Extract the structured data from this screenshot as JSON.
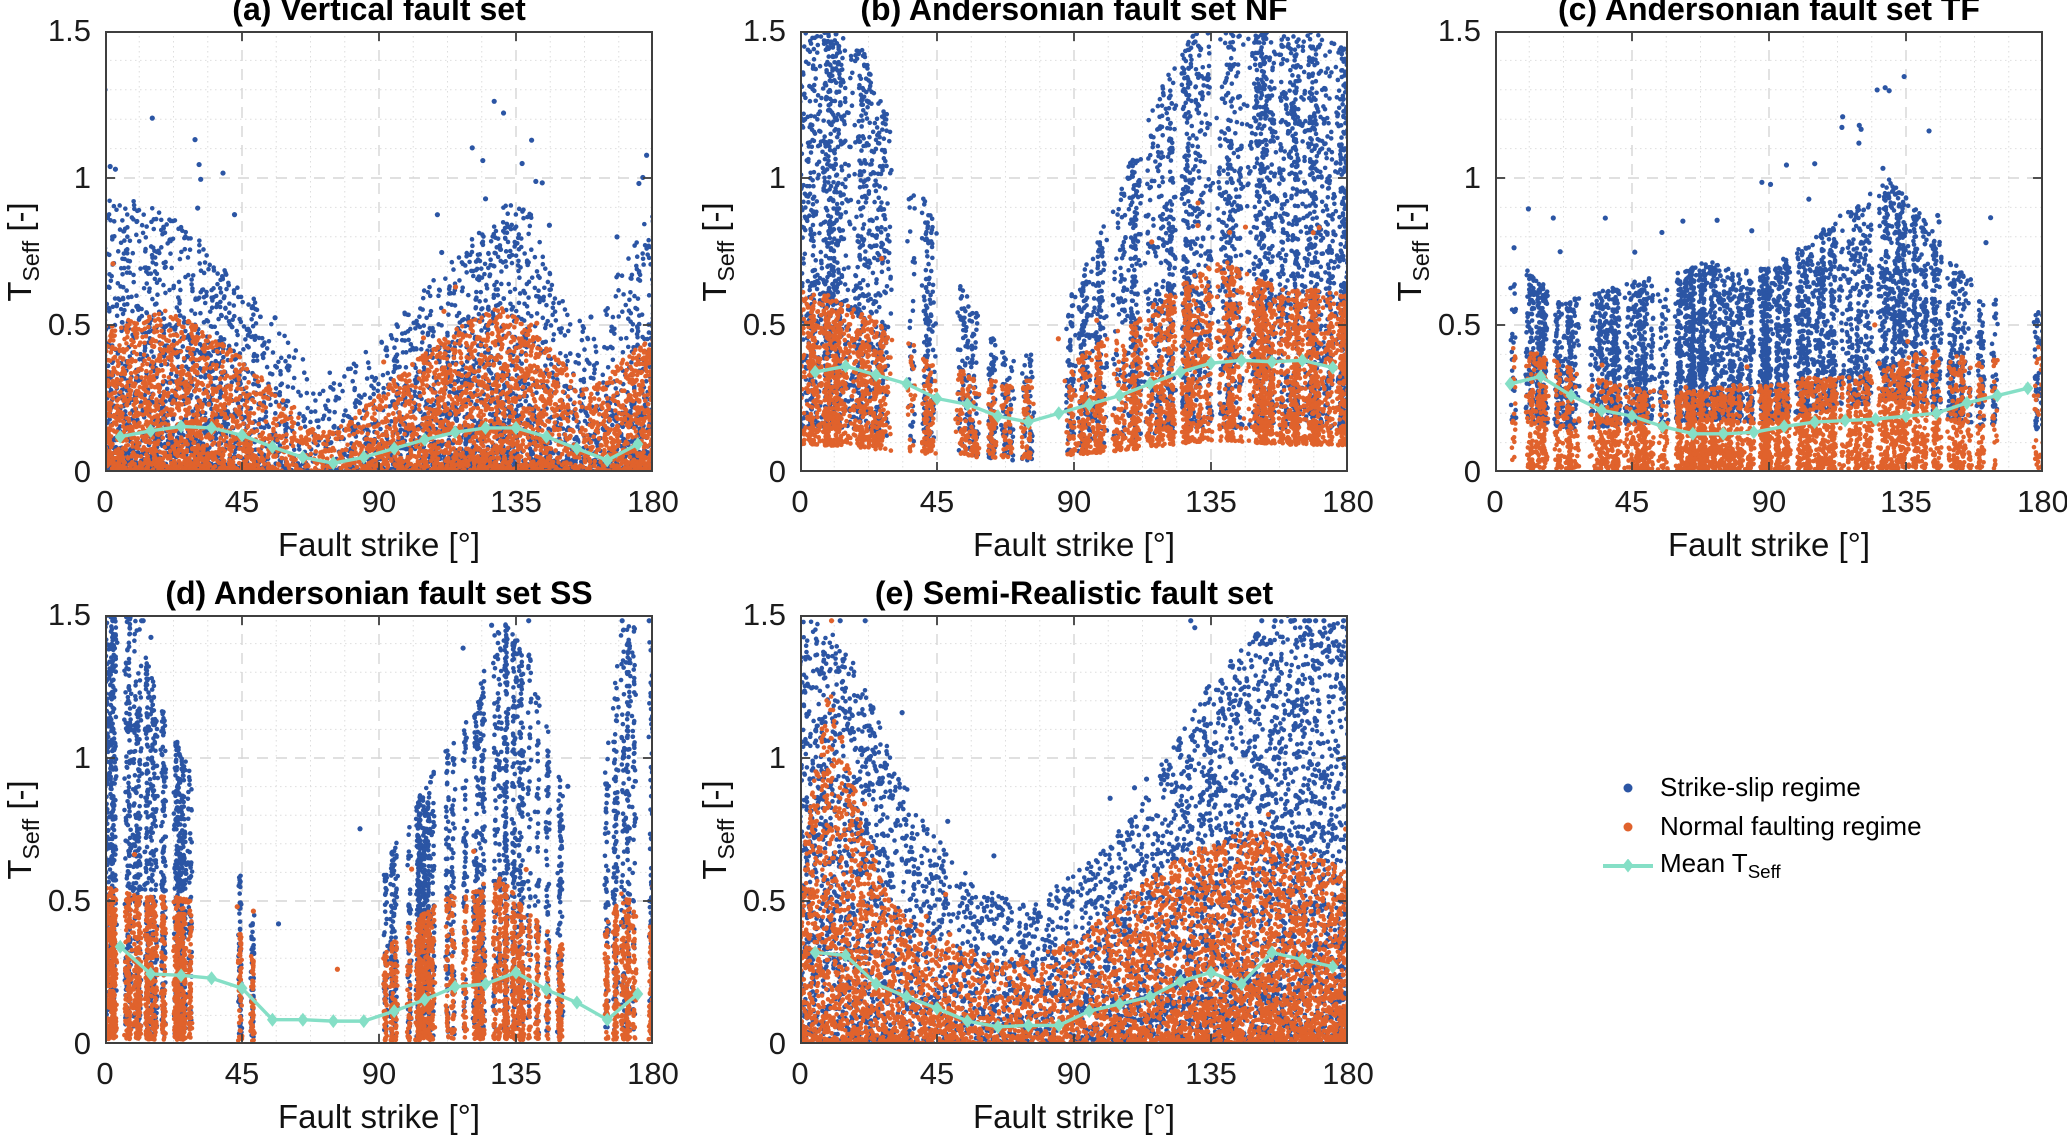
{
  "colors": {
    "strike_slip": "#2b55a4",
    "normal_faulting": "#e0622c",
    "mean_line": "#85dfc6",
    "grid_minor": "#dedede",
    "grid_major": "#d6d6d6",
    "axis_box": "#3f3f3f",
    "background": "#ffffff"
  },
  "axes": {
    "xlabel": "Fault strike [°]",
    "ylabel_main": "T",
    "ylabel_sub": "Seff",
    "ylabel_unit": " [-]",
    "xlim": [
      0,
      180
    ],
    "ylim": [
      0,
      1.5
    ],
    "xticks": [
      0,
      45,
      90,
      135,
      180
    ],
    "xtick_labels": [
      "0",
      "45",
      "90",
      "135",
      "180"
    ],
    "yticks": [
      0,
      0.5,
      1,
      1.5
    ],
    "ytick_labels": [
      "0",
      "0.5",
      "1",
      "1.5"
    ],
    "grid": "on"
  },
  "legend": {
    "position": "bottom-right",
    "items": [
      {
        "label": "Strike-slip regime",
        "sub": "",
        "marker": "dot",
        "color": "#2b55a4"
      },
      {
        "label": "Normal faulting regime",
        "sub": "",
        "marker": "dot",
        "color": "#e0622c"
      },
      {
        "label": "Mean T",
        "sub": "Seff",
        "marker": "line-diamond",
        "color": "#85dfc6"
      }
    ]
  },
  "chart_data": [
    {
      "id": "a",
      "title": "(a) Vertical fault set",
      "type": "scatter",
      "style": "smooth",
      "cols": 0,
      "jitter": 0,
      "seed": 11,
      "env_x": [
        0,
        10,
        20,
        30,
        40,
        50,
        60,
        70,
        80,
        90,
        100,
        110,
        120,
        130,
        140,
        150,
        160,
        170,
        180
      ],
      "blue_hi": [
        0.95,
        0.92,
        0.88,
        0.8,
        0.7,
        0.58,
        0.45,
        0.33,
        0.36,
        0.45,
        0.56,
        0.68,
        0.8,
        0.93,
        0.88,
        0.6,
        0.46,
        0.72,
        0.92
      ],
      "orange_hi": [
        0.5,
        0.53,
        0.55,
        0.5,
        0.43,
        0.34,
        0.25,
        0.13,
        0.18,
        0.27,
        0.36,
        0.45,
        0.52,
        0.57,
        0.5,
        0.38,
        0.28,
        0.38,
        0.47
      ],
      "wx": [
        1,
        1,
        1,
        1,
        0.9,
        0.8,
        0.55,
        0.45,
        0.55,
        0.8,
        0.95,
        1,
        1,
        1,
        0.9,
        0.7,
        0.6,
        0.9,
        1
      ],
      "p_blue": 2.2,
      "p_orange": 1.5,
      "lo_blue": 0,
      "lo_orange": 0,
      "n_blue": 4200,
      "n_orange": 4200,
      "out_blue": 28,
      "out_orange": 6,
      "mean_x": [
        5,
        15,
        25,
        35,
        45,
        55,
        65,
        75,
        85,
        95,
        105,
        115,
        125,
        135,
        145,
        155,
        165,
        175
      ],
      "mean_y": [
        0.12,
        0.14,
        0.155,
        0.15,
        0.125,
        0.085,
        0.05,
        0.03,
        0.05,
        0.08,
        0.11,
        0.135,
        0.15,
        0.15,
        0.12,
        0.08,
        0.04,
        0.095
      ]
    },
    {
      "id": "b",
      "title": "(b) Andersonian fault set NF",
      "type": "scatter",
      "style": "streaky",
      "cols": 150,
      "jitter": 1.0,
      "seed": 22,
      "env_x": [
        0,
        10,
        20,
        30,
        40,
        50,
        60,
        70,
        80,
        90,
        100,
        110,
        120,
        130,
        140,
        150,
        160,
        170,
        180
      ],
      "blue_hi": [
        1.5,
        1.5,
        1.45,
        1.2,
        0.95,
        0.7,
        0.5,
        0.38,
        0.42,
        0.62,
        0.85,
        1.1,
        1.35,
        1.5,
        1.5,
        1.5,
        1.5,
        1.5,
        1.45
      ],
      "orange_hi": [
        0.62,
        0.6,
        0.55,
        0.48,
        0.42,
        0.36,
        0.32,
        0.3,
        0.33,
        0.38,
        0.45,
        0.52,
        0.6,
        0.68,
        0.72,
        0.66,
        0.62,
        0.62,
        0.6
      ],
      "wx": [
        1,
        1,
        0.95,
        0.85,
        0.7,
        0.55,
        0.5,
        0.45,
        0.5,
        0.6,
        0.75,
        0.9,
        1,
        1,
        1,
        1,
        1,
        1,
        1
      ],
      "p_blue": 1.15,
      "p_orange": 1.3,
      "lo_blue": 0.1,
      "lo_orange": 0.15,
      "n_blue": 5000,
      "n_orange": 4200,
      "out_blue": 0,
      "out_orange": 10,
      "mean_x": [
        5,
        15,
        25,
        35,
        45,
        55,
        65,
        75,
        85,
        95,
        105,
        115,
        125,
        135,
        145,
        155,
        165,
        175
      ],
      "mean_y": [
        0.34,
        0.36,
        0.33,
        0.3,
        0.25,
        0.23,
        0.19,
        0.17,
        0.2,
        0.23,
        0.26,
        0.3,
        0.34,
        0.37,
        0.38,
        0.375,
        0.38,
        0.355
      ]
    },
    {
      "id": "c",
      "title": "(c) Andersonian fault set TF",
      "type": "scatter",
      "style": "streaky",
      "cols": 160,
      "jitter": 0.7,
      "seed": 33,
      "env_x": [
        0,
        10,
        20,
        30,
        40,
        50,
        60,
        70,
        80,
        90,
        100,
        110,
        120,
        130,
        140,
        150,
        160,
        170,
        180
      ],
      "blue_hi": [
        0.62,
        0.72,
        0.58,
        0.6,
        0.63,
        0.66,
        0.68,
        0.72,
        0.68,
        0.7,
        0.76,
        0.85,
        0.92,
        1.0,
        0.88,
        0.72,
        0.62,
        0.56,
        0.55
      ],
      "orange_hi": [
        0.46,
        0.42,
        0.38,
        0.33,
        0.3,
        0.28,
        0.27,
        0.28,
        0.3,
        0.3,
        0.32,
        0.32,
        0.33,
        0.36,
        0.42,
        0.4,
        0.38,
        0.42,
        0.46
      ],
      "wx": [
        0.25,
        0.4,
        0.8,
        1,
        1,
        1,
        1,
        1,
        1,
        1,
        1,
        1,
        1,
        1,
        0.9,
        0.6,
        0.45,
        0.4,
        0.45
      ],
      "p_blue": 1.3,
      "p_orange": 1.3,
      "lo_blue": 0.25,
      "lo_orange": 0.03,
      "n_blue": 5200,
      "n_orange": 3800,
      "out_blue": 30,
      "out_orange": 6,
      "mean_x": [
        5,
        15,
        25,
        35,
        45,
        55,
        65,
        75,
        85,
        95,
        105,
        115,
        125,
        135,
        145,
        155,
        165,
        175
      ],
      "mean_y": [
        0.3,
        0.325,
        0.26,
        0.21,
        0.19,
        0.155,
        0.13,
        0.13,
        0.135,
        0.155,
        0.17,
        0.175,
        0.18,
        0.19,
        0.2,
        0.235,
        0.26,
        0.285
      ]
    },
    {
      "id": "d",
      "title": "(d) Andersonian fault set SS",
      "type": "scatter",
      "style": "streaky",
      "cols": 75,
      "jitter": 0.5,
      "seed": 44,
      "env_x": [
        0,
        10,
        20,
        30,
        40,
        50,
        60,
        70,
        80,
        90,
        100,
        110,
        120,
        130,
        140,
        150,
        160,
        170,
        180
      ],
      "blue_hi": [
        1.5,
        1.5,
        1.15,
        0.9,
        0.72,
        0.45,
        0.28,
        0.32,
        0.5,
        0.58,
        0.8,
        1.0,
        1.15,
        1.5,
        1.35,
        0.9,
        0.55,
        1.5,
        1.4
      ],
      "orange_hi": [
        0.55,
        0.52,
        0.52,
        0.5,
        0.47,
        0.3,
        0.15,
        0.2,
        0.26,
        0.3,
        0.42,
        0.5,
        0.55,
        0.58,
        0.45,
        0.35,
        0.3,
        0.55,
        0.4
      ],
      "wx": [
        1,
        1,
        0.75,
        0.6,
        0.5,
        0.22,
        0.12,
        0.12,
        0.18,
        0.45,
        0.7,
        0.85,
        0.95,
        1,
        0.8,
        0.45,
        0.3,
        0.9,
        0.85
      ],
      "p_blue": 1.05,
      "p_orange": 1.2,
      "lo_blue": 0.03,
      "lo_orange": 0.03,
      "n_blue": 4200,
      "n_orange": 3800,
      "out_blue": 12,
      "out_orange": 8,
      "mean_x": [
        5,
        15,
        25,
        35,
        45,
        55,
        65,
        75,
        85,
        95,
        105,
        115,
        125,
        135,
        145,
        155,
        165,
        175
      ],
      "mean_y": [
        0.34,
        0.245,
        0.24,
        0.23,
        0.195,
        0.085,
        0.085,
        0.08,
        0.08,
        0.115,
        0.155,
        0.2,
        0.21,
        0.25,
        0.19,
        0.145,
        0.085,
        0.175
      ]
    },
    {
      "id": "e",
      "title": "(e) Semi-Realistic fault set",
      "type": "scatter",
      "style": "smooth",
      "cols": 0,
      "jitter": 0,
      "seed": 55,
      "env_x": [
        0,
        10,
        20,
        30,
        40,
        50,
        60,
        70,
        80,
        90,
        100,
        110,
        120,
        130,
        140,
        150,
        160,
        170,
        180
      ],
      "blue_hi": [
        1.5,
        1.45,
        1.3,
        1.0,
        0.8,
        0.65,
        0.55,
        0.5,
        0.52,
        0.6,
        0.68,
        0.82,
        1.0,
        1.2,
        1.32,
        1.45,
        1.5,
        1.45,
        1.5
      ],
      "orange_hi": [
        0.6,
        1.3,
        0.8,
        0.5,
        0.42,
        0.35,
        0.32,
        0.3,
        0.32,
        0.36,
        0.45,
        0.55,
        0.62,
        0.68,
        0.72,
        0.76,
        0.7,
        0.66,
        0.6
      ],
      "wx": [
        1,
        1,
        0.95,
        0.9,
        0.85,
        0.8,
        0.8,
        0.8,
        0.8,
        0.85,
        0.9,
        0.95,
        1,
        1,
        1,
        1,
        1,
        1,
        1
      ],
      "p_blue": 1.3,
      "p_orange": 1.5,
      "lo_blue": 0,
      "lo_orange": 0,
      "n_blue": 5200,
      "n_orange": 5200,
      "out_blue": 20,
      "out_orange": 8,
      "mean_x": [
        5,
        15,
        25,
        35,
        45,
        55,
        65,
        75,
        85,
        95,
        105,
        115,
        125,
        135,
        145,
        155,
        165,
        175
      ],
      "mean_y": [
        0.32,
        0.31,
        0.21,
        0.165,
        0.125,
        0.08,
        0.06,
        0.065,
        0.065,
        0.115,
        0.14,
        0.165,
        0.22,
        0.25,
        0.21,
        0.32,
        0.295,
        0.27
      ]
    }
  ]
}
